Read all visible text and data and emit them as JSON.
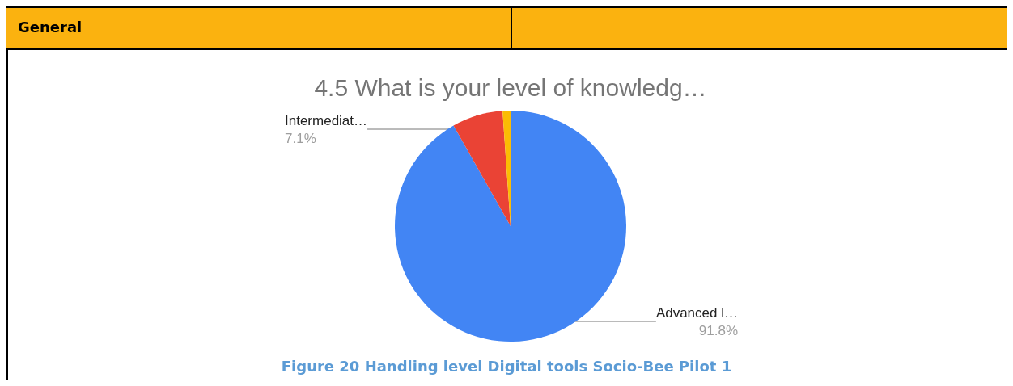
{
  "chart_data": {
    "type": "pie",
    "title": "4.5 What is your level of knowledg…",
    "categories": [
      "Advanced l…",
      "Intermediat…",
      null
    ],
    "values": [
      91.8,
      7.1,
      1.1
    ],
    "value_labels": [
      "91.8%",
      "7.1%",
      null
    ],
    "colors": [
      "#4285f4",
      "#ea4335",
      "#fbbc04"
    ],
    "legend": false,
    "annotations": [
      "General",
      "Figure 20 Handling level Digital tools Socio-Bee Pilot 1"
    ]
  }
}
